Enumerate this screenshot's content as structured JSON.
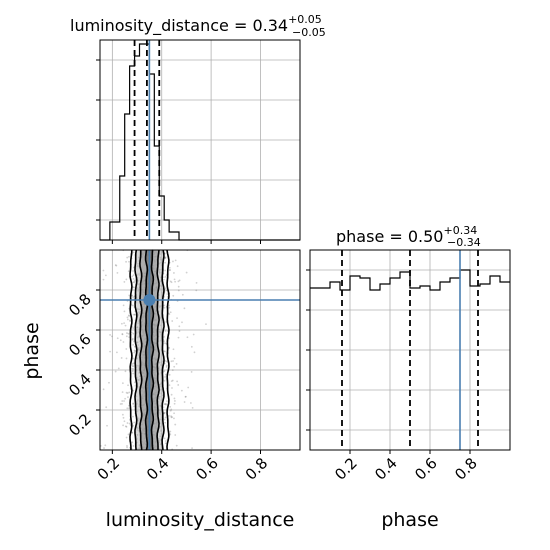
{
  "chart_data": [
    {
      "type": "histogram",
      "panel": "luminosity_distance marginal",
      "title": "luminosity_distance = 0.34",
      "title_sup": "+0.05",
      "title_sub": "−0.05",
      "xlim": [
        0.15,
        0.96
      ],
      "y_tick_values": [
        0.1,
        0.3,
        0.5,
        0.7,
        0.9
      ],
      "ylim": [
        0,
        1
      ],
      "bins": [
        {
          "x0": 0.15,
          "x1": 0.19,
          "count": 0.0
        },
        {
          "x0": 0.19,
          "x1": 0.23,
          "count": 0.09
        },
        {
          "x0": 0.23,
          "x1": 0.25,
          "count": 0.32
        },
        {
          "x0": 0.25,
          "x1": 0.27,
          "count": 0.63
        },
        {
          "x0": 0.27,
          "x1": 0.29,
          "count": 0.87
        },
        {
          "x0": 0.29,
          "x1": 0.31,
          "count": 0.92
        },
        {
          "x0": 0.31,
          "x1": 0.35,
          "count": 0.98
        },
        {
          "x0": 0.35,
          "x1": 0.37,
          "count": 0.83
        },
        {
          "x0": 0.37,
          "x1": 0.39,
          "count": 0.47
        },
        {
          "x0": 0.39,
          "x1": 0.41,
          "count": 0.22
        },
        {
          "x0": 0.41,
          "x1": 0.43,
          "count": 0.1
        },
        {
          "x0": 0.43,
          "x1": 0.47,
          "count": 0.04
        },
        {
          "x0": 0.47,
          "x1": 0.96,
          "count": 0.0
        }
      ],
      "quantile_lines": [
        0.29,
        0.34,
        0.39
      ],
      "truth": 0.35,
      "grid": true
    },
    {
      "type": "histogram",
      "panel": "phase marginal",
      "title": "phase = 0.50",
      "title_sup": "+0.34",
      "title_sub": "−0.34",
      "xlim": [
        0.0,
        1.0
      ],
      "x_ticks": [
        0.2,
        0.4,
        0.6,
        0.8
      ],
      "x_tick_labels": [
        "0.2",
        "0.4",
        "0.6",
        "0.8"
      ],
      "xlabel": "phase",
      "y_tick_values": [
        0.1,
        0.3,
        0.5,
        0.7,
        0.9
      ],
      "ylim": [
        0,
        1
      ],
      "bins": [
        {
          "x0": 0.0,
          "x1": 0.1,
          "count": 0.81
        },
        {
          "x0": 0.1,
          "x1": 0.15,
          "count": 0.84
        },
        {
          "x0": 0.15,
          "x1": 0.2,
          "count": 0.8
        },
        {
          "x0": 0.2,
          "x1": 0.25,
          "count": 0.87
        },
        {
          "x0": 0.25,
          "x1": 0.3,
          "count": 0.86
        },
        {
          "x0": 0.3,
          "x1": 0.35,
          "count": 0.8
        },
        {
          "x0": 0.35,
          "x1": 0.4,
          "count": 0.83
        },
        {
          "x0": 0.4,
          "x1": 0.45,
          "count": 0.86
        },
        {
          "x0": 0.45,
          "x1": 0.5,
          "count": 0.89
        },
        {
          "x0": 0.5,
          "x1": 0.55,
          "count": 0.81
        },
        {
          "x0": 0.55,
          "x1": 0.6,
          "count": 0.82
        },
        {
          "x0": 0.6,
          "x1": 0.65,
          "count": 0.8
        },
        {
          "x0": 0.65,
          "x1": 0.7,
          "count": 0.84
        },
        {
          "x0": 0.7,
          "x1": 0.75,
          "count": 0.86
        },
        {
          "x0": 0.75,
          "x1": 0.8,
          "count": 0.9
        },
        {
          "x0": 0.8,
          "x1": 0.85,
          "count": 0.82
        },
        {
          "x0": 0.85,
          "x1": 0.9,
          "count": 0.83
        },
        {
          "x0": 0.9,
          "x1": 0.95,
          "count": 0.87
        },
        {
          "x0": 0.95,
          "x1": 1.0,
          "count": 0.84
        }
      ],
      "quantile_lines": [
        0.16,
        0.5,
        0.84
      ],
      "truth": 0.75,
      "grid": true
    },
    {
      "type": "scatter",
      "panel": "2D posterior",
      "xlim": [
        0.15,
        0.96
      ],
      "ylim": [
        0.0,
        1.0
      ],
      "x_ticks": [
        0.2,
        0.4,
        0.6,
        0.8
      ],
      "x_tick_labels": [
        "0.2",
        "0.4",
        "0.6",
        "0.8"
      ],
      "y_ticks": [
        0.2,
        0.4,
        0.6,
        0.8
      ],
      "y_tick_labels": [
        "0.2",
        "0.4",
        "0.6",
        "0.8"
      ],
      "xlabel": "luminosity_distance",
      "ylabel": "phase",
      "sample_spread": {
        "x_center": 0.35,
        "x_sd": 0.045,
        "y_range": [
          0.0,
          1.0
        ]
      },
      "contour_levels_x_halfwidth": [
        0.012,
        0.035,
        0.055,
        0.075
      ],
      "contour_center_x": 0.35,
      "truth": {
        "x": 0.35,
        "y": 0.75
      },
      "grid": true
    }
  ],
  "colors": {
    "truth": "#4a7fb0",
    "hist": "#000000",
    "grid": "#b0b0b0",
    "points": "#7a7a7a"
  }
}
